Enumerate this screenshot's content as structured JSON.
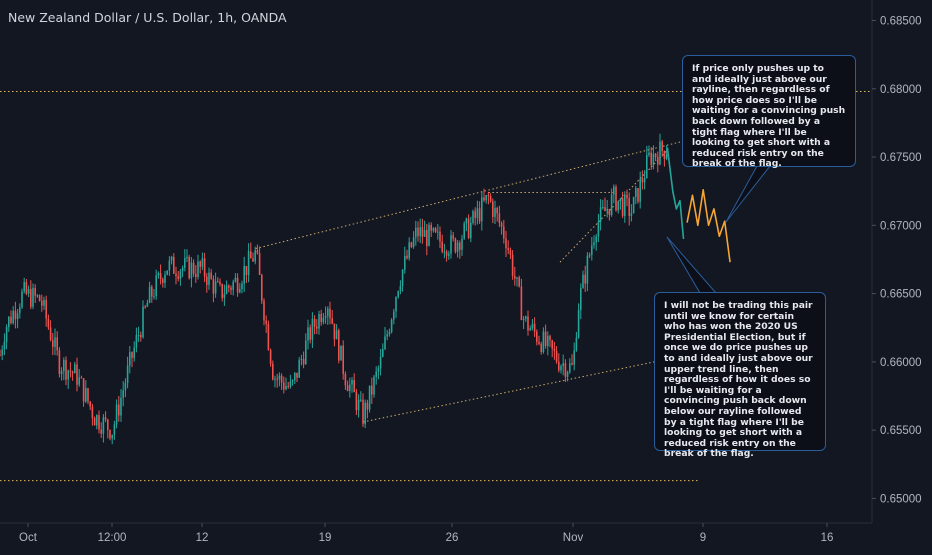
{
  "chart_data": {
    "type": "candlestick",
    "title": "New Zealand Dollar / U.S. Dollar, 1h, OANDA",
    "x_ticks": [
      "Oct",
      "12:00",
      "12",
      "19",
      "26",
      "Nov",
      "9",
      "16"
    ],
    "y_ticks": [
      "0.68500",
      "0.68000",
      "0.67500",
      "0.67000",
      "0.66500",
      "0.66000",
      "0.65500",
      "0.65000"
    ],
    "ylim": [
      0.6482,
      0.6865
    ],
    "grid": false,
    "colors": {
      "background": "#131722",
      "up": "#26a69a",
      "down": "#ef5350",
      "projection_up": "#26a69a",
      "projection_orange": "#f7a533",
      "level_line": "#e0b65c",
      "trendline": "#c9a96b",
      "callout_border": "#2a5d9b"
    },
    "price_path": [
      [
        "Oct",
        0.6605
      ],
      [
        "Oct 1",
        0.6625
      ],
      [
        "Oct 2",
        0.665
      ],
      [
        "Oct 3",
        0.6645
      ],
      [
        "Oct 4",
        0.66
      ],
      [
        "Oct 5",
        0.659
      ],
      [
        "Oct 6",
        0.656
      ],
      [
        "Oct 7",
        0.655
      ],
      [
        "Oct 8",
        0.66
      ],
      [
        "Oct 9",
        0.6645
      ],
      [
        "Oct 10",
        0.667
      ],
      [
        "Oct 12",
        0.6668
      ],
      [
        "Oct 13",
        0.665
      ],
      [
        "Oct 14",
        0.666
      ],
      [
        "Oct 15",
        0.668
      ],
      [
        "Oct 16",
        0.659
      ],
      [
        "Oct 17",
        0.658
      ],
      [
        "Oct 18",
        0.662
      ],
      [
        "Oct 19",
        0.6645
      ],
      [
        "Oct 20",
        0.659
      ],
      [
        "Oct 21",
        0.656
      ],
      [
        "Oct 22",
        0.66
      ],
      [
        "Oct 23",
        0.666
      ],
      [
        "Oct 24",
        0.6695
      ],
      [
        "Oct 25",
        0.669
      ],
      [
        "Oct 26",
        0.6685
      ],
      [
        "Oct 27",
        0.67
      ],
      [
        "Oct 28",
        0.672
      ],
      [
        "Oct 29",
        0.669
      ],
      [
        "Oct 30",
        0.663
      ],
      [
        "Oct 31",
        0.6615
      ],
      [
        "Nov 1",
        0.66
      ],
      [
        "Nov",
        0.6595
      ],
      [
        "Nov 2",
        0.664
      ],
      [
        "Nov 3",
        0.67
      ],
      [
        "Nov 4",
        0.672
      ],
      [
        "Nov 5",
        0.671
      ],
      [
        "Nov 6",
        0.675
      ],
      [
        "Nov 7",
        0.6757
      ]
    ],
    "projection": [
      {
        "color": "teal",
        "points": [
          [
            "Nov 7",
            0.6757
          ],
          [
            "Nov 7.3",
            0.6725
          ],
          [
            "Nov 7.5",
            0.6712
          ],
          [
            "Nov 7.7",
            0.6718
          ],
          [
            "Nov 7.9",
            0.669
          ]
        ]
      },
      {
        "color": "orange",
        "points": [
          [
            "Nov 8.1",
            0.6702
          ],
          [
            "Nov 8.4",
            0.6722
          ],
          [
            "Nov 8.7",
            0.67
          ],
          [
            "Nov 9",
            0.6726
          ],
          [
            "Nov 9.3",
            0.67
          ],
          [
            "Nov 9.6",
            0.6712
          ],
          [
            "Nov 9.9",
            0.6692
          ],
          [
            "Nov 10.2",
            0.6703
          ],
          [
            "Nov 10.5",
            0.6673
          ]
        ]
      }
    ],
    "levels": [
      0.6798,
      0.6513
    ],
    "trendlines": [
      {
        "from": [
          "Oct 15",
          0.6683
        ],
        "to": [
          "Nov 8",
          0.6762
        ],
        "label": "upper trend line"
      },
      {
        "from": [
          "Oct 21",
          0.6556
        ],
        "to": [
          "Nov 7",
          0.6602
        ],
        "label": "rayline"
      },
      {
        "from": [
          "Oct 28",
          0.6724
        ],
        "to": [
          "Nov 4",
          0.6724
        ]
      },
      {
        "from": [
          "Nov 1",
          0.6673
        ],
        "to": [
          "Nov 7",
          0.6755
        ]
      }
    ],
    "annotations": [
      "If price only pushes up to and ideally just above our rayline, then regardless of how price does so I'll be waiting for a convincing push back down followed by a tight flag where I'll be looking to get short with a reduced risk entry on the break of the flag.",
      "I will not be trading this pair until we know for certain who has won the 2020 US Presidential Election, but if once we do price pushes up to and ideally just above our upper trend line, then regardless of how it does so I'll be waiting for a convincing push back down below our rayline followed by a tight flag where I'll be looking to get short with a reduced risk entry on the break of the flag."
    ]
  }
}
